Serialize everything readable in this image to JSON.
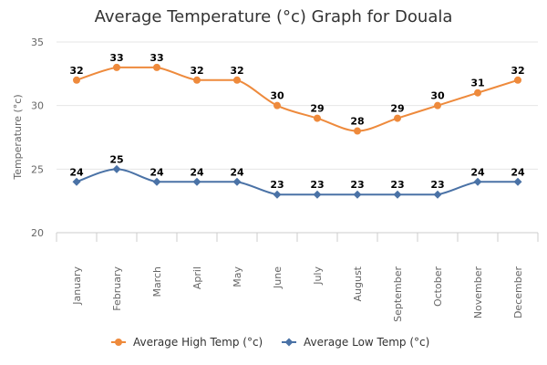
{
  "chart_data": {
    "type": "line",
    "title": "Average Temperature (°c) Graph for Douala",
    "xlabel": "",
    "ylabel": "Temperature (°c)",
    "ylim": [
      20,
      35
    ],
    "yticks": [
      "20",
      "25",
      "30",
      "35"
    ],
    "grid": true,
    "legend_position": "bottom-center",
    "categories": [
      "January",
      "February",
      "March",
      "April",
      "May",
      "June",
      "July",
      "August",
      "September",
      "October",
      "November",
      "December"
    ],
    "series": [
      {
        "name": "Average High Temp (°c)",
        "color": "#ee8a3c",
        "marker": "circle",
        "values": [
          32,
          33,
          33,
          32,
          32,
          30,
          29,
          28,
          29,
          30,
          31,
          32
        ],
        "labels": [
          "32",
          "33",
          "33",
          "32",
          "32",
          "30",
          "29",
          "28",
          "29",
          "30",
          "31",
          "32"
        ]
      },
      {
        "name": "Average Low Temp (°c)",
        "color": "#4a72a6",
        "marker": "diamond",
        "values": [
          24,
          25,
          24,
          24,
          24,
          23,
          23,
          23,
          23,
          23,
          24,
          24
        ],
        "labels": [
          "24",
          "25",
          "24",
          "24",
          "24",
          "23",
          "23",
          "23",
          "23",
          "23",
          "24",
          "24"
        ]
      }
    ]
  }
}
